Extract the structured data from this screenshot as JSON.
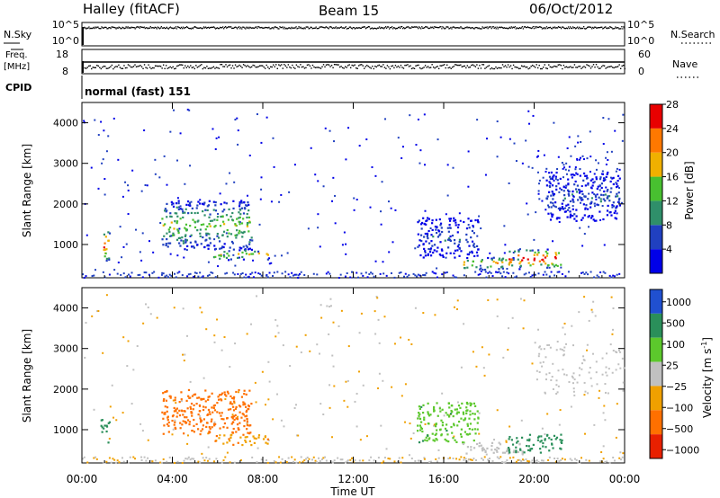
{
  "header": {
    "station": "Halley (fitACF)",
    "beam": "Beam 15",
    "date": "06/Oct/2012"
  },
  "top_panels": {
    "nsky": {
      "label": "N.Sky",
      "ticks": [
        "10^5",
        "10^0"
      ]
    },
    "nsearch": {
      "label": "N.Search",
      "ticks": [
        "10^5",
        "10^0"
      ]
    },
    "freq": {
      "label_line1": "Freq.",
      "label_line2": "[MHz]",
      "ticks": [
        "18",
        "8"
      ]
    },
    "nave": {
      "label": "Nave",
      "ticks": [
        "60",
        "0"
      ]
    },
    "cpid": {
      "label": "CPID",
      "value": "normal (fast) 151"
    }
  },
  "chart_data": [
    {
      "type": "heatmap",
      "title": "",
      "xlabel": "",
      "ylabel": "Slant Range [km]",
      "xlim": [
        "00:00",
        "24:00"
      ],
      "ylim": [
        180,
        4500
      ],
      "yticks": [
        "1000",
        "2000",
        "3000",
        "4000"
      ],
      "colorbar": {
        "label": "Power [dB]",
        "ticks": [
          "4",
          "8",
          "12",
          "16",
          "20",
          "24",
          "28"
        ],
        "colors": [
          "#0000e8",
          "#2040c0",
          "#2f8f6a",
          "#48c030",
          "#f0b000",
          "#ff7800",
          "#e80000"
        ]
      },
      "features": [
        {
          "t_start": 0.8,
          "t_end": 1.2,
          "range_start": 600,
          "range_end": 1400,
          "power": 18
        },
        {
          "t_start": 3.5,
          "t_end": 7.5,
          "range_start": 900,
          "range_end": 2100,
          "power": 12
        },
        {
          "t_start": 5.8,
          "t_end": 8.2,
          "range_start": 640,
          "range_end": 900,
          "power": 14
        },
        {
          "t_start": 14.8,
          "t_end": 17.5,
          "range_start": 700,
          "range_end": 1700,
          "power": 6
        },
        {
          "t_start": 16.8,
          "t_end": 19.5,
          "range_start": 400,
          "range_end": 700,
          "power": 16
        },
        {
          "t_start": 18.8,
          "t_end": 21.2,
          "range_start": 450,
          "range_end": 900,
          "power": 22
        },
        {
          "t_start": 20.5,
          "t_end": 23.8,
          "range_start": 1600,
          "range_end": 2800,
          "power": 6
        }
      ]
    },
    {
      "type": "heatmap",
      "title": "",
      "xlabel": "Time UT",
      "ylabel": "Slant Range [km]",
      "xlim": [
        "00:00",
        "24:00"
      ],
      "xticks": [
        "00:00",
        "04:00",
        "08:00",
        "12:00",
        "16:00",
        "20:00",
        "00:00"
      ],
      "ylim": [
        180,
        4500
      ],
      "yticks": [
        "1000",
        "2000",
        "3000",
        "4000"
      ],
      "colorbar": {
        "label": "Velocity  [m s",
        "label_sup": "-1",
        "label_close": "]",
        "ticks": [
          "1000",
          "500",
          "100",
          "25",
          "−25",
          "−100",
          "−500",
          "−1000"
        ],
        "colors": [
          "#2050d0",
          "#2a8f5a",
          "#5cc82c",
          "#c0c0c0",
          "#f0a000",
          "#ff7000",
          "#e82000"
        ]
      },
      "features": [
        {
          "t_start": 0.8,
          "t_end": 1.2,
          "range_start": 700,
          "range_end": 1300,
          "velocity": 300
        },
        {
          "t_start": 3.5,
          "t_end": 7.5,
          "range_start": 900,
          "range_end": 2000,
          "velocity": -300
        },
        {
          "t_start": 5.8,
          "t_end": 8.2,
          "range_start": 640,
          "range_end": 900,
          "velocity": -80
        },
        {
          "t_start": 14.8,
          "t_end": 17.5,
          "range_start": 700,
          "range_end": 1700,
          "velocity": 70
        },
        {
          "t_start": 16.8,
          "t_end": 19.5,
          "range_start": 400,
          "range_end": 700,
          "velocity": 0
        },
        {
          "t_start": 18.8,
          "t_end": 21.2,
          "range_start": 450,
          "range_end": 900,
          "velocity": 200
        }
      ]
    }
  ]
}
